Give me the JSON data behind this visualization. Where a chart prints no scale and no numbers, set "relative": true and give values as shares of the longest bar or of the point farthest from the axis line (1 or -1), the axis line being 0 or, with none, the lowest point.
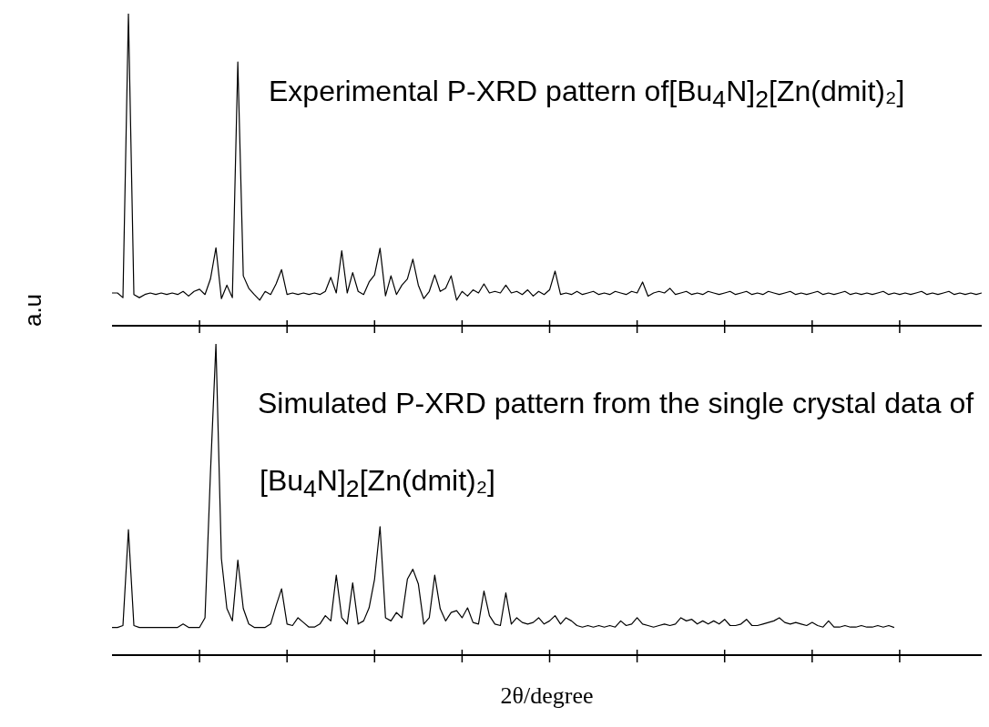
{
  "chart_data": [
    {
      "type": "line",
      "relative": true,
      "ylabel": "a.u",
      "annotations": [
        "Experimental P-XRD pattern of[Bu$_{4}$N]$_{2}$[Zn(dmit)₂]"
      ],
      "categories": [
        null,
        null,
        null,
        null,
        null,
        null,
        null,
        null,
        null,
        null,
        null,
        null,
        null,
        null,
        null,
        null,
        null,
        null,
        null,
        null,
        null,
        null,
        null,
        null,
        null,
        null,
        null,
        null,
        null,
        null,
        null,
        null,
        null,
        null,
        null,
        null,
        null,
        null,
        null,
        null,
        null,
        null,
        null,
        null,
        null,
        null,
        null,
        null,
        null,
        null,
        null,
        null,
        null,
        null,
        null,
        null,
        null,
        null,
        null,
        null,
        null,
        null,
        null,
        null,
        null,
        null,
        null,
        null,
        null,
        null,
        null,
        null,
        null,
        null,
        null,
        null,
        null,
        null,
        null,
        null,
        null,
        null,
        null,
        null,
        null,
        null,
        null,
        null,
        null,
        null,
        null,
        null,
        null,
        null,
        null,
        null,
        null,
        null,
        null,
        null,
        null,
        null,
        null,
        null,
        null,
        null,
        null,
        null,
        null,
        null,
        null,
        null,
        null,
        null,
        null,
        null,
        null,
        null,
        null,
        null,
        null,
        null,
        null,
        null,
        null,
        null,
        null,
        null,
        null,
        null,
        null,
        null,
        null,
        null,
        null,
        null,
        null,
        null,
        null,
        null,
        null,
        null,
        null,
        null,
        null,
        null,
        null,
        null,
        null,
        null,
        null,
        null,
        null,
        null,
        null,
        null,
        null,
        null,
        null,
        null
      ],
      "series": [
        {
          "color": "#000000",
          "values": [
            0.105,
            0.105,
            0.09,
            1,
            0.1,
            0.09,
            0.1,
            0.105,
            0.1,
            0.105,
            0.1,
            0.105,
            0.1,
            0.11,
            0.095,
            0.11,
            0.117,
            0.1,
            0.15,
            0.25,
            0.087,
            0.13,
            0.09,
            0.845,
            0.16,
            0.12,
            0.1,
            0.082,
            0.11,
            0.1,
            0.134,
            0.18,
            0.1,
            0.105,
            0.1,
            0.105,
            0.1,
            0.105,
            0.1,
            0.11,
            0.155,
            0.105,
            0.24,
            0.105,
            0.17,
            0.11,
            0.1,
            0.14,
            0.163,
            0.248,
            0.096,
            0.16,
            0.1,
            0.13,
            0.15,
            0.213,
            0.13,
            0.087,
            0.11,
            0.163,
            0.11,
            0.12,
            0.16,
            0.082,
            0.11,
            0.095,
            0.115,
            0.105,
            0.134,
            0.105,
            0.11,
            0.105,
            0.13,
            0.105,
            0.11,
            0.1,
            0.115,
            0.095,
            0.11,
            0.1,
            0.115,
            0.175,
            0.1,
            0.105,
            0.1,
            0.11,
            0.1,
            0.105,
            0.11,
            0.1,
            0.105,
            0.1,
            0.11,
            0.105,
            0.1,
            0.11,
            0.105,
            0.14,
            0.095,
            0.105,
            0.11,
            0.105,
            0.12,
            0.1,
            0.105,
            0.11,
            0.1,
            0.105,
            0.1,
            0.11,
            0.105,
            0.1,
            0.105,
            0.11,
            0.1,
            0.105,
            0.11,
            0.1,
            0.105,
            0.1,
            0.11,
            0.105,
            0.1,
            0.105,
            0.11,
            0.1,
            0.105,
            0.1,
            0.105,
            0.11,
            0.1,
            0.105,
            0.1,
            0.105,
            0.11,
            0.1,
            0.105,
            0.1,
            0.105,
            0.1,
            0.105,
            0.11,
            0.1,
            0.105,
            0.1,
            0.105,
            0.1,
            0.105,
            0.11,
            0.1,
            0.105,
            0.1,
            0.105,
            0.11,
            0.1,
            0.105,
            0.1,
            0.105,
            0.1,
            0.105
          ]
        }
      ]
    },
    {
      "type": "line",
      "relative": true,
      "xlabel": "2θ/degree",
      "annotations": [
        "Simulated P-XRD pattern from the single crystal data of",
        "[Bu$_{4}$N]$_{2}$[Zn(dmit)₂]"
      ],
      "categories": [
        null,
        null,
        null,
        null,
        null,
        null,
        null,
        null,
        null,
        null,
        null,
        null,
        null,
        null,
        null,
        null,
        null,
        null,
        null,
        null,
        null,
        null,
        null,
        null,
        null,
        null,
        null,
        null,
        null,
        null,
        null,
        null,
        null,
        null,
        null,
        null,
        null,
        null,
        null,
        null,
        null,
        null,
        null,
        null,
        null,
        null,
        null,
        null,
        null,
        null,
        null,
        null,
        null,
        null,
        null,
        null,
        null,
        null,
        null,
        null,
        null,
        null,
        null,
        null,
        null,
        null,
        null,
        null,
        null,
        null,
        null,
        null,
        null,
        null,
        null,
        null,
        null,
        null,
        null,
        null,
        null,
        null,
        null,
        null,
        null,
        null,
        null,
        null,
        null,
        null,
        null,
        null,
        null,
        null,
        null,
        null,
        null,
        null,
        null,
        null,
        null,
        null,
        null,
        null,
        null,
        null,
        null,
        null,
        null,
        null,
        null,
        null,
        null,
        null,
        null,
        null,
        null,
        null,
        null,
        null,
        null,
        null,
        null,
        null,
        null,
        null,
        null,
        null,
        null,
        null,
        null,
        null,
        null,
        null,
        null,
        null,
        null,
        null,
        null,
        null,
        null,
        null,
        null,
        null,
        null,
        null,
        null,
        null,
        null,
        null,
        null,
        null,
        null,
        null,
        null,
        null,
        null,
        null,
        null,
        null
      ],
      "series": [
        {
          "color": "#000000",
          "values": [
            0.089,
            0.089,
            0.095,
            0.403,
            0.095,
            0.089,
            0.089,
            0.089,
            0.089,
            0.089,
            0.089,
            0.089,
            0.089,
            0.1,
            0.089,
            0.089,
            0.089,
            0.12,
            0.587,
            1,
            0.31,
            0.15,
            0.11,
            0.305,
            0.15,
            0.1,
            0.089,
            0.089,
            0.089,
            0.1,
            0.159,
            0.213,
            0.1,
            0.095,
            0.12,
            0.105,
            0.09,
            0.09,
            0.1,
            0.127,
            0.11,
            0.257,
            0.12,
            0.1,
            0.232,
            0.1,
            0.11,
            0.152,
            0.244,
            0.413,
            0.12,
            0.11,
            0.137,
            0.12,
            0.244,
            0.276,
            0.229,
            0.1,
            0.12,
            0.257,
            0.149,
            0.11,
            0.137,
            0.143,
            0.12,
            0.152,
            0.105,
            0.1,
            0.206,
            0.127,
            0.1,
            0.095,
            0.2,
            0.1,
            0.12,
            0.105,
            0.1,
            0.105,
            0.12,
            0.1,
            0.11,
            0.127,
            0.1,
            0.12,
            0.11,
            0.095,
            0.09,
            0.095,
            0.09,
            0.095,
            0.09,
            0.095,
            0.09,
            0.11,
            0.095,
            0.1,
            0.12,
            0.1,
            0.095,
            0.09,
            0.095,
            0.1,
            0.095,
            0.1,
            0.12,
            0.11,
            0.115,
            0.1,
            0.11,
            0.1,
            0.11,
            0.1,
            0.115,
            0.095,
            0.095,
            0.1,
            0.115,
            0.095,
            0.095,
            0.1,
            0.105,
            0.11,
            0.12,
            0.105,
            0.1,
            0.105,
            0.1,
            0.095,
            0.105,
            0.095,
            0.09,
            0.11,
            0.09,
            0.09,
            0.095,
            0.09,
            0.09,
            0.095,
            0.09,
            0.09,
            0.095,
            0.09,
            0.095,
            0.089,
            null,
            null,
            null,
            null,
            null,
            null,
            null,
            null,
            null,
            null,
            null,
            null,
            null,
            null,
            null,
            null
          ]
        }
      ]
    }
  ]
}
